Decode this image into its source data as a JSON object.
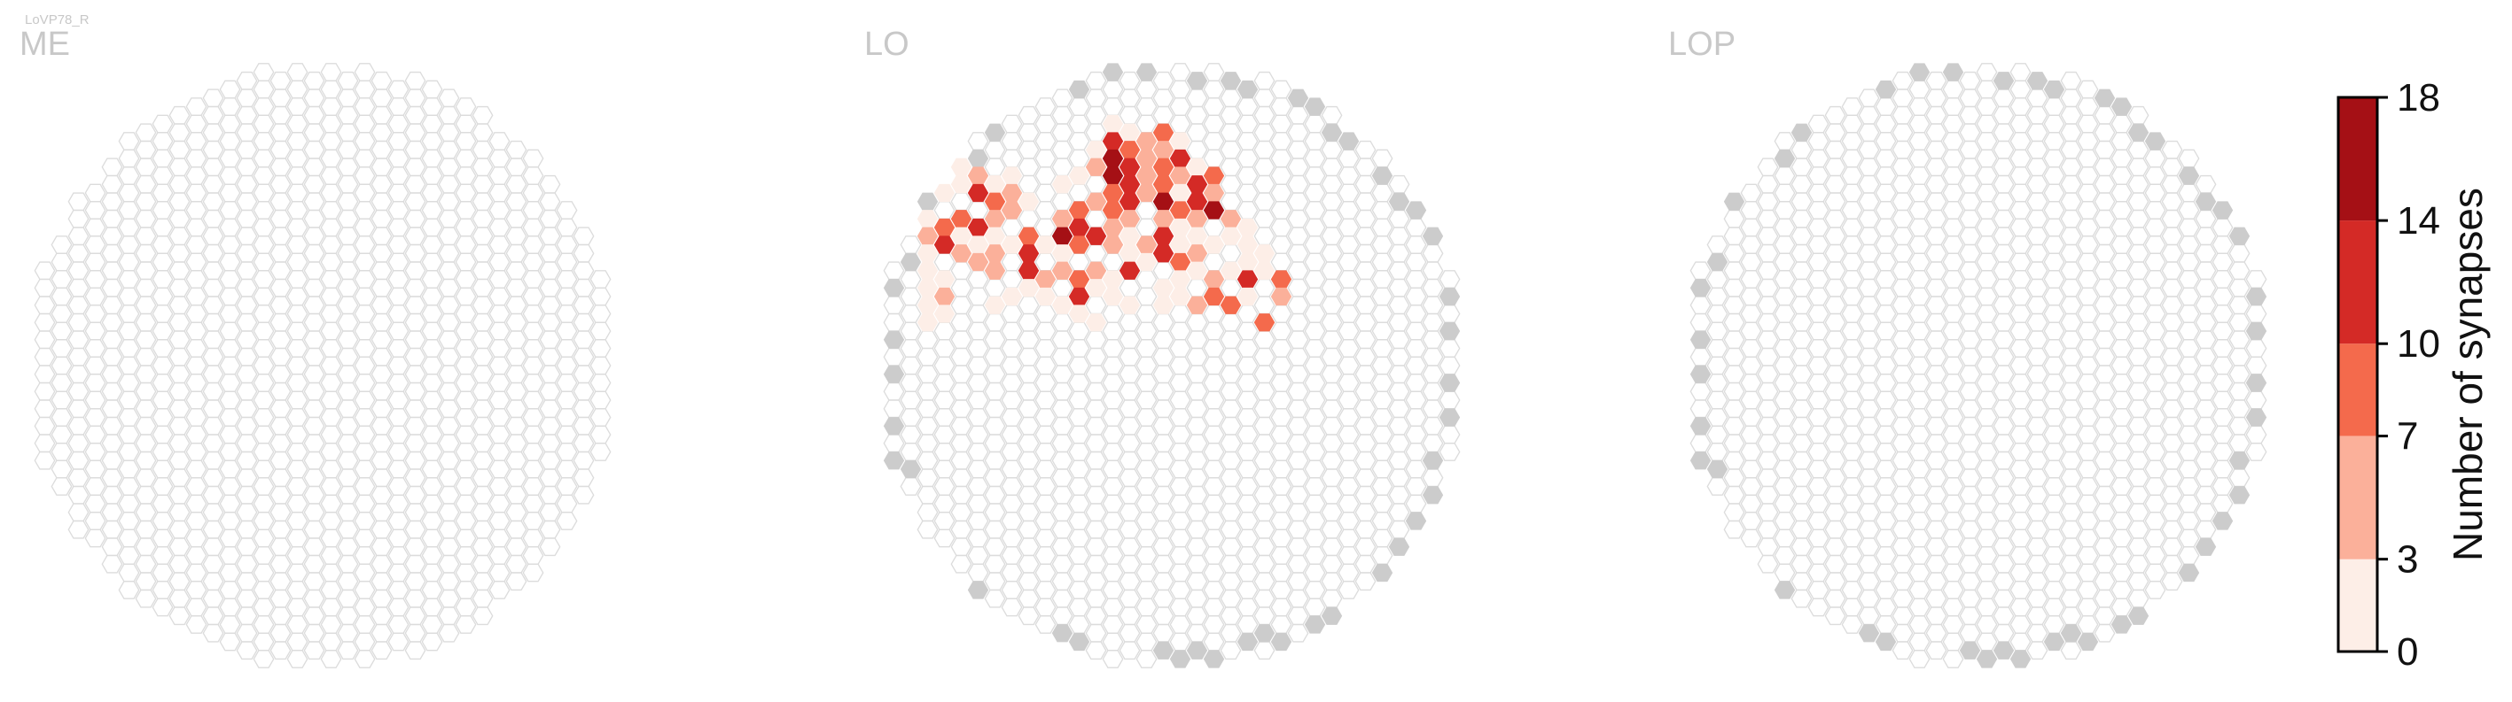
{
  "cell_type": "LoVP78_R",
  "colors": {
    "hex_outline": "#dcdcdc",
    "empty_fill": "#ffffff",
    "edge_fill": "#cccccc",
    "bins": [
      "#fdeee7",
      "#fbb09a",
      "#f46a4c",
      "#d42a26",
      "#a51015"
    ]
  },
  "chart_data": {
    "type": "heatmap",
    "grid": "hexagonal",
    "panels": [
      {
        "title": "ME",
        "synapses": []
      },
      {
        "title": "LO",
        "synapses": [
          {
            "col": 14,
            "row": 4,
            "value": 2
          },
          {
            "col": 15,
            "row": 4,
            "value": 3
          },
          {
            "col": 17,
            "row": 4,
            "value": 9
          },
          {
            "col": 13,
            "row": 5,
            "value": 2
          },
          {
            "col": 14,
            "row": 5,
            "value": 11
          },
          {
            "col": 15,
            "row": 5,
            "value": 9
          },
          {
            "col": 16,
            "row": 5,
            "value": 4
          },
          {
            "col": 17,
            "row": 5,
            "value": 6
          },
          {
            "col": 18,
            "row": 5,
            "value": 3
          },
          {
            "col": 13,
            "row": 6,
            "value": 7
          },
          {
            "col": 14,
            "row": 6,
            "value": 16
          },
          {
            "col": 15,
            "row": 6,
            "value": 13
          },
          {
            "col": 16,
            "row": 6,
            "value": 5
          },
          {
            "col": 17,
            "row": 6,
            "value": 9
          },
          {
            "col": 18,
            "row": 6,
            "value": 12
          },
          {
            "col": 19,
            "row": 6,
            "value": 3
          },
          {
            "col": 4,
            "row": 6,
            "value": 1
          },
          {
            "col": 5,
            "row": 6,
            "value": 2
          },
          {
            "col": 14,
            "row": 7,
            "value": 17
          },
          {
            "col": 15,
            "row": 7,
            "value": 14
          },
          {
            "col": 16,
            "row": 7,
            "value": 7
          },
          {
            "col": 17,
            "row": 7,
            "value": 9
          },
          {
            "col": 18,
            "row": 7,
            "value": 6
          },
          {
            "col": 19,
            "row": 7,
            "value": 11
          },
          {
            "col": 20,
            "row": 7,
            "value": 8
          },
          {
            "col": 3,
            "row": 7,
            "value": 2
          },
          {
            "col": 4,
            "row": 7,
            "value": 12
          },
          {
            "col": 5,
            "row": 7,
            "value": 3
          },
          {
            "col": 6,
            "row": 7,
            "value": 4
          },
          {
            "col": 7,
            "row": 7,
            "value": 3
          },
          {
            "col": 8,
            "row": 7,
            "value": 2
          },
          {
            "col": 11,
            "row": 7,
            "value": 2
          },
          {
            "col": 12,
            "row": 7,
            "value": 3
          },
          {
            "col": 2,
            "row": 8,
            "value": 7
          },
          {
            "col": 4,
            "row": 8,
            "value": 3
          },
          {
            "col": 6,
            "row": 8,
            "value": 11
          },
          {
            "col": 7,
            "row": 8,
            "value": 9
          },
          {
            "col": 8,
            "row": 8,
            "value": 5
          },
          {
            "col": 9,
            "row": 8,
            "value": 3
          },
          {
            "col": 13,
            "row": 8,
            "value": 5
          },
          {
            "col": 14,
            "row": 8,
            "value": 8
          },
          {
            "col": 15,
            "row": 8,
            "value": 12
          },
          {
            "col": 16,
            "row": 8,
            "value": 5
          },
          {
            "col": 17,
            "row": 8,
            "value": 17
          },
          {
            "col": 18,
            "row": 8,
            "value": 3
          },
          {
            "col": 19,
            "row": 8,
            "value": 13
          },
          {
            "col": 20,
            "row": 8,
            "value": 4
          },
          {
            "col": 2,
            "row": 9,
            "value": 4
          },
          {
            "col": 3,
            "row": 9,
            "value": 3
          },
          {
            "col": 5,
            "row": 9,
            "value": 8
          },
          {
            "col": 7,
            "row": 9,
            "value": 5
          },
          {
            "col": 8,
            "row": 9,
            "value": 7
          },
          {
            "col": 11,
            "row": 9,
            "value": 4
          },
          {
            "col": 12,
            "row": 9,
            "value": 8
          },
          {
            "col": 14,
            "row": 9,
            "value": 10
          },
          {
            "col": 15,
            "row": 9,
            "value": 6
          },
          {
            "col": 17,
            "row": 9,
            "value": 4
          },
          {
            "col": 18,
            "row": 9,
            "value": 8
          },
          {
            "col": 19,
            "row": 9,
            "value": 4
          },
          {
            "col": 20,
            "row": 9,
            "value": 16
          },
          {
            "col": 21,
            "row": 9,
            "value": 5
          },
          {
            "col": 3,
            "row": 10,
            "value": 4
          },
          {
            "col": 4,
            "row": 10,
            "value": 8
          },
          {
            "col": 5,
            "row": 10,
            "value": 3
          },
          {
            "col": 6,
            "row": 10,
            "value": 12
          },
          {
            "col": 7,
            "row": 10,
            "value": 2
          },
          {
            "col": 9,
            "row": 10,
            "value": 9
          },
          {
            "col": 11,
            "row": 10,
            "value": 16
          },
          {
            "col": 12,
            "row": 10,
            "value": 13
          },
          {
            "col": 13,
            "row": 10,
            "value": 11
          },
          {
            "col": 14,
            "row": 10,
            "value": 6
          },
          {
            "col": 15,
            "row": 10,
            "value": 3
          },
          {
            "col": 17,
            "row": 10,
            "value": 12
          },
          {
            "col": 18,
            "row": 10,
            "value": 3
          },
          {
            "col": 19,
            "row": 10,
            "value": 2
          },
          {
            "col": 21,
            "row": 10,
            "value": 2
          },
          {
            "col": 22,
            "row": 10,
            "value": 3
          },
          {
            "col": 3,
            "row": 11,
            "value": 2
          },
          {
            "col": 4,
            "row": 11,
            "value": 11
          },
          {
            "col": 5,
            "row": 11,
            "value": 5
          },
          {
            "col": 6,
            "row": 11,
            "value": 3
          },
          {
            "col": 7,
            "row": 11,
            "value": 4
          },
          {
            "col": 8,
            "row": 11,
            "value": 3
          },
          {
            "col": 9,
            "row": 11,
            "value": 14
          },
          {
            "col": 10,
            "row": 11,
            "value": 3
          },
          {
            "col": 11,
            "row": 11,
            "value": 2
          },
          {
            "col": 12,
            "row": 11,
            "value": 9
          },
          {
            "col": 14,
            "row": 11,
            "value": 4
          },
          {
            "col": 15,
            "row": 11,
            "value": 2
          },
          {
            "col": 16,
            "row": 11,
            "value": 5
          },
          {
            "col": 17,
            "row": 11,
            "value": 14
          },
          {
            "col": 18,
            "row": 11,
            "value": 3
          },
          {
            "col": 19,
            "row": 11,
            "value": 4
          },
          {
            "col": 20,
            "row": 11,
            "value": 3
          },
          {
            "col": 22,
            "row": 11,
            "value": 2
          },
          {
            "col": 23,
            "row": 11,
            "value": 3
          },
          {
            "col": 3,
            "row": 12,
            "value": 2
          },
          {
            "col": 6,
            "row": 12,
            "value": 5
          },
          {
            "col": 7,
            "row": 12,
            "value": 7
          },
          {
            "col": 9,
            "row": 12,
            "value": 12
          },
          {
            "col": 11,
            "row": 12,
            "value": 5
          },
          {
            "col": 13,
            "row": 12,
            "value": 4
          },
          {
            "col": 15,
            "row": 12,
            "value": 11
          },
          {
            "col": 16,
            "row": 12,
            "value": 3
          },
          {
            "col": 18,
            "row": 12,
            "value": 9
          },
          {
            "col": 19,
            "row": 12,
            "value": 2
          },
          {
            "col": 21,
            "row": 12,
            "value": 3
          },
          {
            "col": 22,
            "row": 12,
            "value": 3
          },
          {
            "col": 23,
            "row": 12,
            "value": 2
          },
          {
            "col": 3,
            "row": 13,
            "value": 2
          },
          {
            "col": 4,
            "row": 13,
            "value": 3
          },
          {
            "col": 9,
            "row": 13,
            "value": 2
          },
          {
            "col": 10,
            "row": 13,
            "value": 5
          },
          {
            "col": 12,
            "row": 13,
            "value": 8
          },
          {
            "col": 13,
            "row": 13,
            "value": 3
          },
          {
            "col": 14,
            "row": 13,
            "value": 2
          },
          {
            "col": 17,
            "row": 13,
            "value": 3
          },
          {
            "col": 18,
            "row": 13,
            "value": 2
          },
          {
            "col": 20,
            "row": 13,
            "value": 5
          },
          {
            "col": 22,
            "row": 13,
            "value": 13
          },
          {
            "col": 24,
            "row": 13,
            "value": 9
          },
          {
            "col": 3,
            "row": 14,
            "value": 2
          },
          {
            "col": 4,
            "row": 14,
            "value": 6
          },
          {
            "col": 7,
            "row": 14,
            "value": 2
          },
          {
            "col": 8,
            "row": 14,
            "value": 2
          },
          {
            "col": 10,
            "row": 14,
            "value": 2
          },
          {
            "col": 11,
            "row": 14,
            "value": 3
          },
          {
            "col": 12,
            "row": 14,
            "value": 11
          },
          {
            "col": 14,
            "row": 14,
            "value": 3
          },
          {
            "col": 15,
            "row": 14,
            "value": 2
          },
          {
            "col": 17,
            "row": 14,
            "value": 2
          },
          {
            "col": 18,
            "row": 14,
            "value": 3
          },
          {
            "col": 19,
            "row": 14,
            "value": 5
          },
          {
            "col": 20,
            "row": 14,
            "value": 8
          },
          {
            "col": 21,
            "row": 14,
            "value": 9
          },
          {
            "col": 22,
            "row": 14,
            "value": 3
          },
          {
            "col": 24,
            "row": 14,
            "value": 5
          },
          {
            "col": 3,
            "row": 15,
            "value": 2
          },
          {
            "col": 4,
            "row": 15,
            "value": 3
          },
          {
            "col": 12,
            "row": 15,
            "value": 2
          },
          {
            "col": 13,
            "row": 15,
            "value": 2
          },
          {
            "col": 23,
            "row": 15,
            "value": 8
          }
        ]
      },
      {
        "title": "LOP",
        "synapses": []
      }
    ],
    "colorbar": {
      "label": "Number of synapses",
      "ticks": [
        0,
        3,
        7,
        10,
        14,
        18
      ],
      "range": [
        0,
        18
      ]
    }
  }
}
